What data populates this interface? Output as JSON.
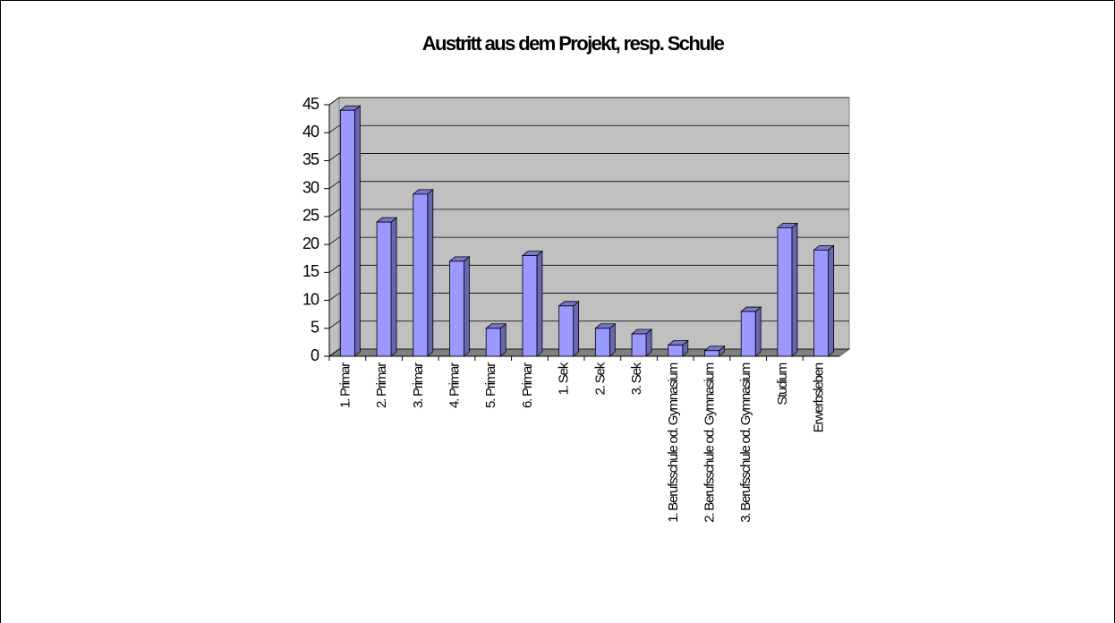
{
  "chart_data": {
    "type": "bar3d",
    "title": "Austritt aus dem Projekt, resp. Schule",
    "categories": [
      "1. Primar",
      "2. Primar",
      "3. Primar",
      "4. Primar",
      "5. Primar",
      "6. Primar",
      "1. Sek",
      "2. Sek",
      "3. Sek",
      "1. Berufsschule od. Gymnasium",
      "2. Berufsschule od. Gymnasium",
      "3. Berufsschule od. Gymnasium",
      "Studium",
      "Erwerbsleben"
    ],
    "values": [
      44,
      24,
      29,
      17,
      5,
      18,
      9,
      5,
      4,
      2,
      1,
      8,
      23,
      19
    ],
    "color": "#9999ff",
    "ylim": [
      0,
      45
    ],
    "yticks": [
      0,
      5,
      10,
      15,
      20,
      25,
      30,
      35,
      40,
      45
    ],
    "grid": true
  }
}
